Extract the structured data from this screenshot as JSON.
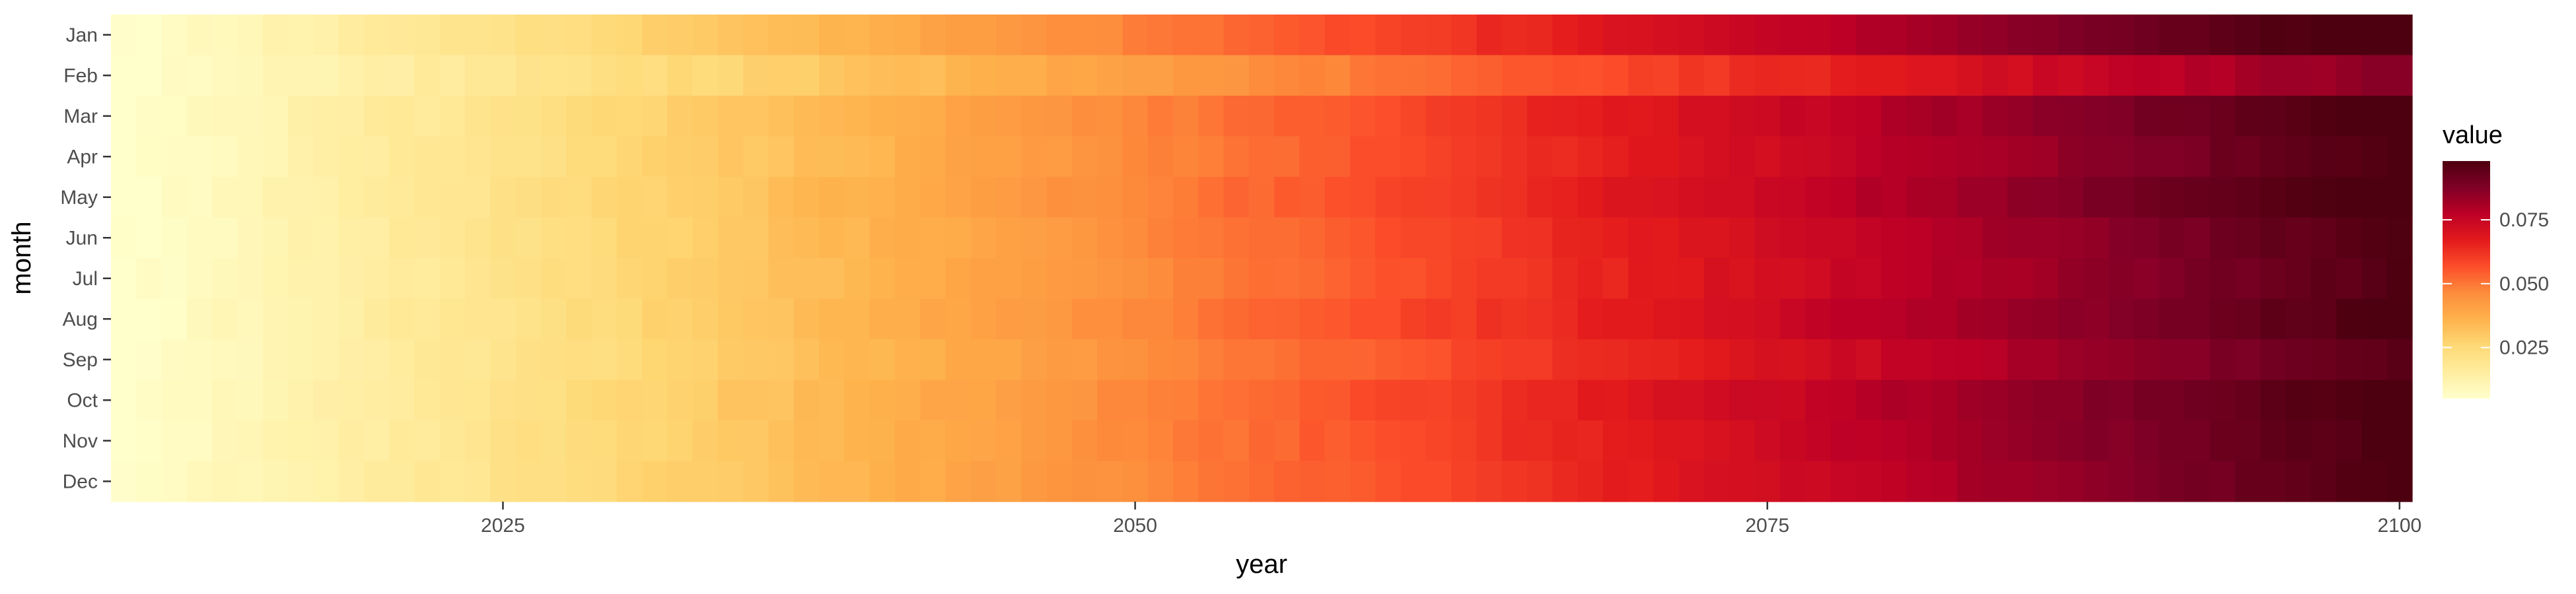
{
  "chart_data": {
    "type": "heatmap",
    "xlabel": "year",
    "ylabel": "month",
    "x_range": [
      2010,
      2100
    ],
    "x_ticks": [
      2025,
      2050,
      2075,
      2100
    ],
    "months": [
      "Jan",
      "Feb",
      "Mar",
      "Apr",
      "May",
      "Jun",
      "Jul",
      "Aug",
      "Sep",
      "Oct",
      "Nov",
      "Dec"
    ],
    "month_offsets": [
      0.004,
      -0.012,
      0.002,
      0.0,
      0.003,
      0.0,
      -0.001,
      0.001,
      -0.003,
      0.002,
      0.001,
      0.0
    ],
    "value_model": {
      "start_year": 2010,
      "end_year": 2100,
      "start_value": 0.005,
      "end_value": 0.098,
      "curve_exponent": 1.0
    },
    "legend": {
      "title": "value",
      "ticks": [
        0.025,
        0.05,
        0.075
      ],
      "tick_labels": [
        "0.025",
        "0.050",
        "0.075"
      ],
      "range": [
        0.005,
        0.098
      ]
    },
    "color_scale": [
      "#ffffcc",
      "#ffeda0",
      "#fed976",
      "#feb24c",
      "#fd8d3c",
      "#fc4e2a",
      "#e31a1c",
      "#bd0026",
      "#800026",
      "#4d0010"
    ]
  }
}
